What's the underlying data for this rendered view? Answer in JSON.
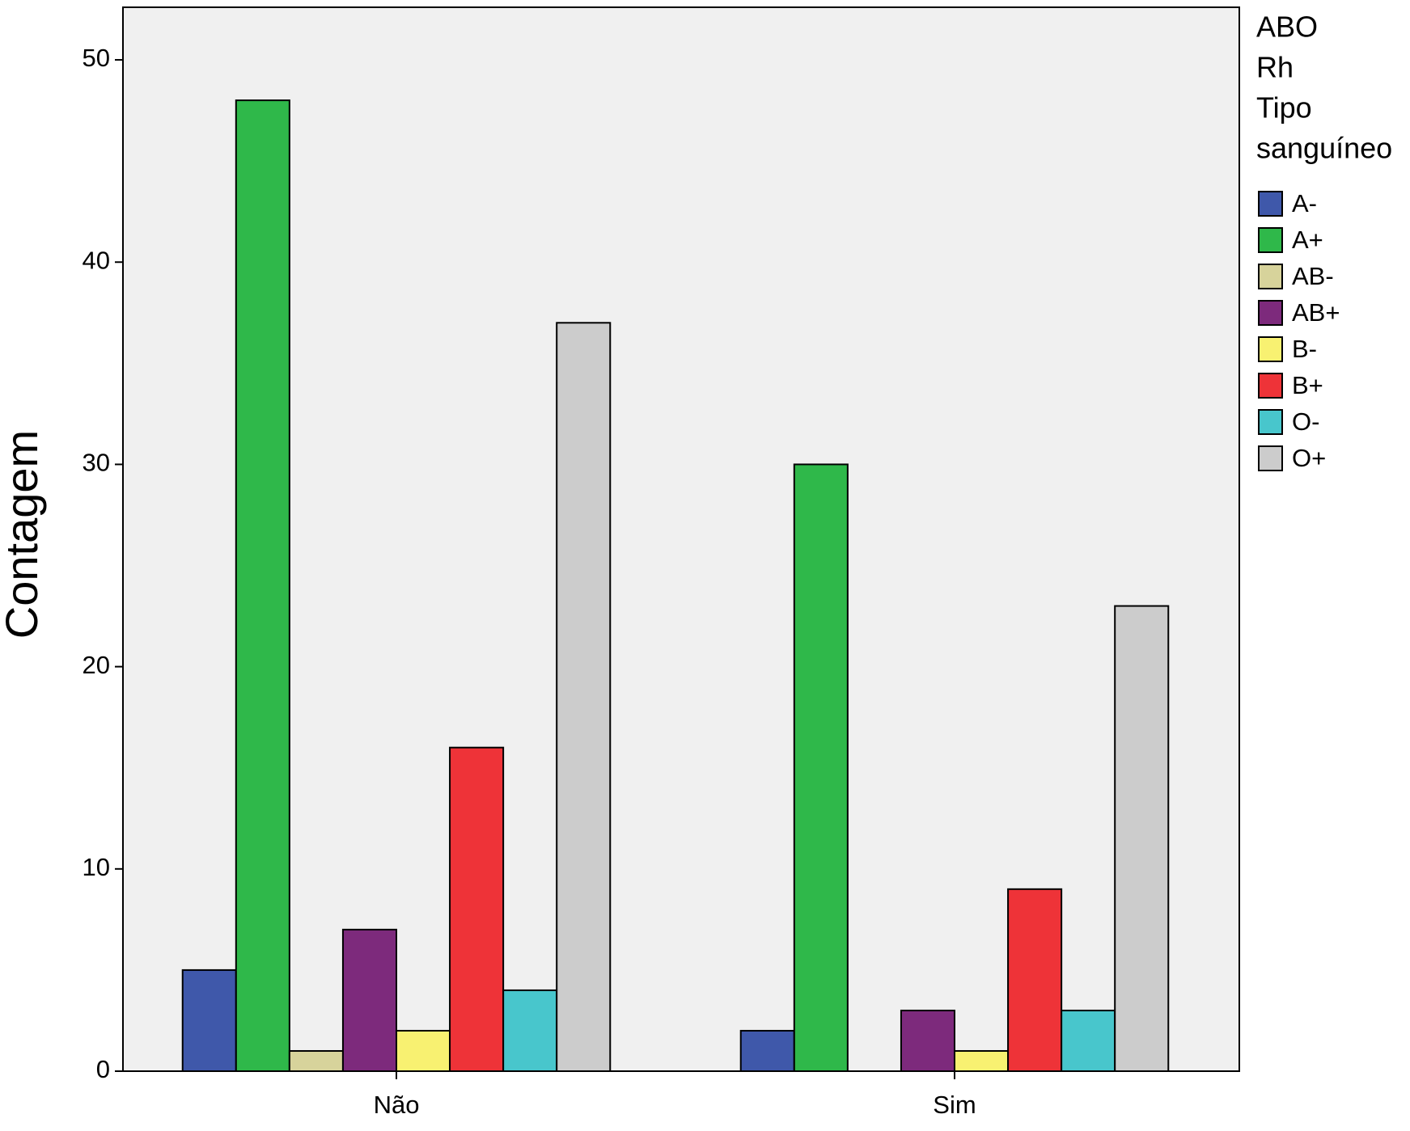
{
  "chart_data": {
    "type": "bar",
    "y_label": "Contagem",
    "categories": [
      "Não",
      "Sim"
    ],
    "legend_title": [
      "ABO",
      "Rh",
      "Tipo",
      "sanguíneo"
    ],
    "series": [
      {
        "name": "A-",
        "color": "#3f58aa",
        "values": [
          5,
          2
        ]
      },
      {
        "name": "A+",
        "color": "#2fb84a",
        "values": [
          48,
          30
        ]
      },
      {
        "name": "AB-",
        "color": "#d7d39b",
        "values": [
          1,
          0
        ]
      },
      {
        "name": "AB+",
        "color": "#7d2a7c",
        "values": [
          7,
          3
        ]
      },
      {
        "name": "B-",
        "color": "#f8f171",
        "values": [
          2,
          1
        ]
      },
      {
        "name": "B+",
        "color": "#ee3338",
        "values": [
          16,
          9
        ]
      },
      {
        "name": "O-",
        "color": "#48c6cc",
        "values": [
          4,
          3
        ]
      },
      {
        "name": "O+",
        "color": "#cccccc",
        "values": [
          37,
          23
        ]
      }
    ],
    "ylim": [
      0,
      52.6
    ],
    "yticks": [
      0,
      10,
      20,
      30,
      40,
      50
    ],
    "grid": false
  }
}
